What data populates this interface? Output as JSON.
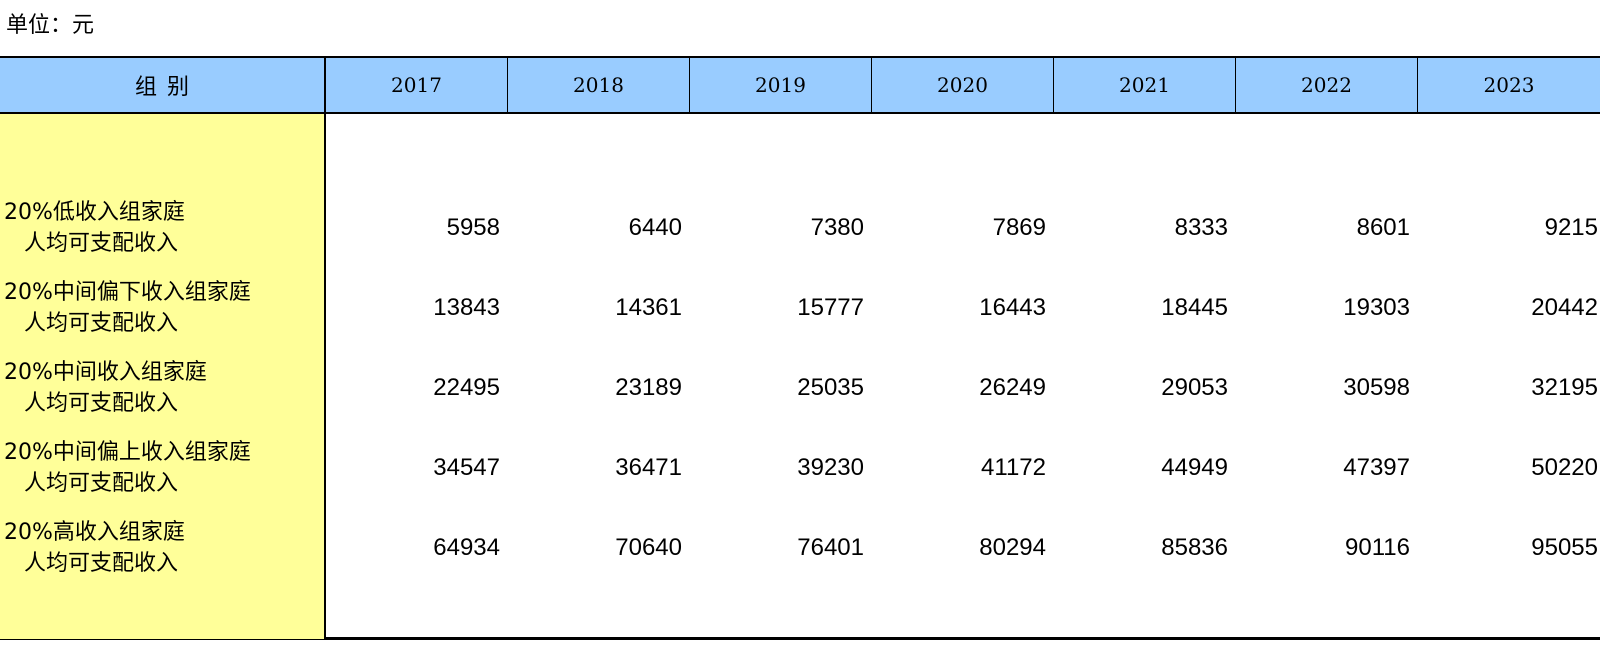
{
  "unit_label": "单位：元",
  "header": {
    "group_label": "组别",
    "years": [
      "2017",
      "2018",
      "2019",
      "2020",
      "2021",
      "2022",
      "2023"
    ]
  },
  "rows": [
    {
      "label_line1": "20%低收入组家庭",
      "label_line2": "人均可支配收入",
      "values": [
        "5958",
        "6440",
        "7380",
        "7869",
        "8333",
        "8601",
        "9215"
      ]
    },
    {
      "label_line1": "20%中间偏下收入组家庭",
      "label_line2": "人均可支配收入",
      "values": [
        "13843",
        "14361",
        "15777",
        "16443",
        "18445",
        "19303",
        "20442"
      ]
    },
    {
      "label_line1": "20%中间收入组家庭",
      "label_line2": "人均可支配收入",
      "values": [
        "22495",
        "23189",
        "25035",
        "26249",
        "29053",
        "30598",
        "32195"
      ]
    },
    {
      "label_line1": "20%中间偏上收入组家庭",
      "label_line2": "人均可支配收入",
      "values": [
        "34547",
        "36471",
        "39230",
        "41172",
        "44949",
        "47397",
        "50220"
      ]
    },
    {
      "label_line1": "20%高收入组家庭",
      "label_line2": "人均可支配收入",
      "values": [
        "64934",
        "70640",
        "76401",
        "80294",
        "85836",
        "90116",
        "95055"
      ]
    }
  ],
  "colors": {
    "header_bg": "#99ccff",
    "label_col_bg": "#ffff99"
  }
}
